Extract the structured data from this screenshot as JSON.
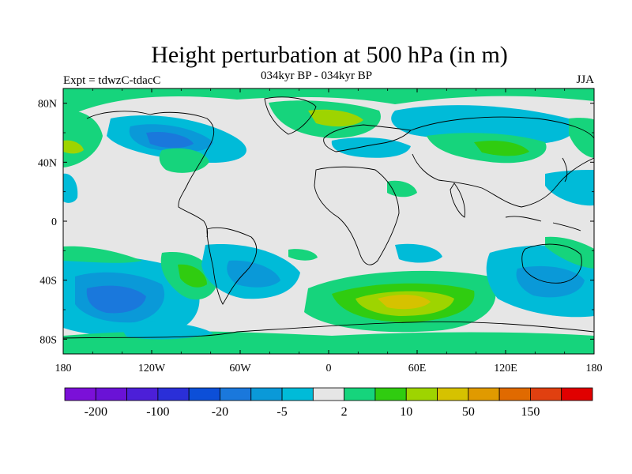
{
  "title": "Height perturbation at 500 hPa (in m)",
  "experiment_label": "Expt = tdwzC-tdacC",
  "period_label": "034kyr BP - 034kyr BP",
  "season_label": "JJA",
  "map": {
    "projection": "cylindrical-equidistant",
    "lon_range": [
      -180,
      180
    ],
    "lat_range": [
      -90,
      90
    ],
    "lon_ticks": [
      "180",
      "120W",
      "60W",
      "0",
      "60E",
      "120E",
      "180"
    ],
    "lat_ticks": [
      "80N",
      "40N",
      "0",
      "40S",
      "80S"
    ],
    "background_color": "#e6e6e6",
    "coastline_color": "#000000"
  },
  "colorbar": {
    "colors": [
      "#7b10d8",
      "#6a12d6",
      "#4c1fd8",
      "#2a2fd8",
      "#0c4fd8",
      "#1a78dc",
      "#0a99d8",
      "#00bbd8",
      "#e6e6e6",
      "#16d47c",
      "#30cc10",
      "#9ed400",
      "#d6c200",
      "#e09a00",
      "#e06a00",
      "#e04010",
      "#e00000"
    ],
    "labels": [
      "-200",
      "-100",
      "-20",
      "-5",
      "2",
      "10",
      "50",
      "150"
    ]
  }
}
